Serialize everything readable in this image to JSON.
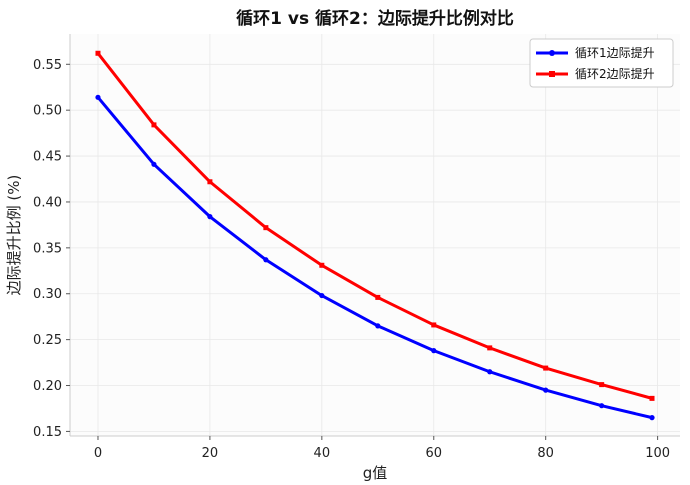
{
  "chart_data": {
    "type": "line",
    "title": "循环1 vs 循环2：边际提升比例对比",
    "xlabel": "g值",
    "ylabel": "边际提升比例 (%)",
    "xlim": [
      -5,
      104
    ],
    "ylim": [
      0.145,
      0.583
    ],
    "xticks": [
      0,
      20,
      40,
      60,
      80,
      100
    ],
    "yticks": [
      0.15,
      0.2,
      0.25,
      0.3,
      0.35,
      0.4,
      0.45,
      0.5,
      0.55
    ],
    "grid": true,
    "legend_position": "top-right",
    "series": [
      {
        "name": "循环1边际提升",
        "color": "#0000ff",
        "marker": "circle",
        "x": [
          0,
          10,
          20,
          30,
          40,
          50,
          60,
          70,
          80,
          90,
          99
        ],
        "y": [
          0.514,
          0.441,
          0.384,
          0.337,
          0.298,
          0.265,
          0.238,
          0.215,
          0.195,
          0.178,
          0.165
        ]
      },
      {
        "name": "循环2边际提升",
        "color": "#ff0000",
        "marker": "square",
        "x": [
          0,
          10,
          20,
          30,
          40,
          50,
          60,
          70,
          80,
          90,
          99
        ],
        "y": [
          0.562,
          0.484,
          0.422,
          0.372,
          0.331,
          0.296,
          0.266,
          0.241,
          0.219,
          0.201,
          0.186
        ]
      }
    ]
  }
}
